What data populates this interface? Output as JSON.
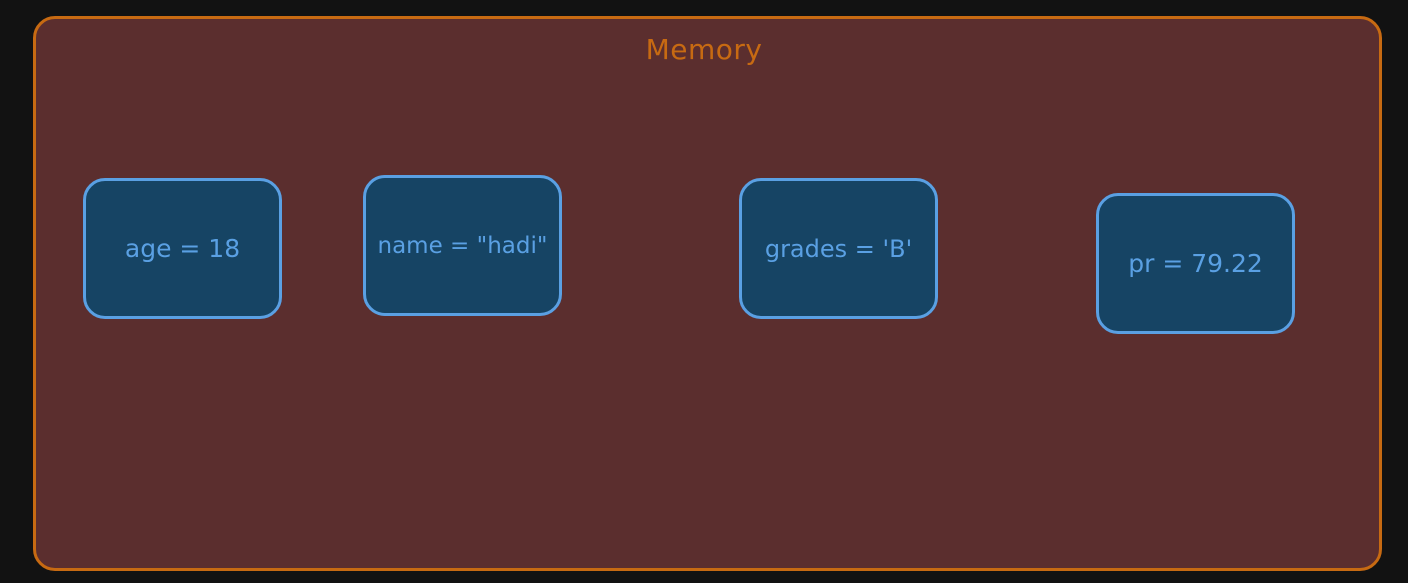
{
  "memory": {
    "title": "Memory",
    "border_color": "#c76a12",
    "fill_color": "#5b2e2e"
  },
  "variables": [
    {
      "label": "age = 18"
    },
    {
      "label": "name = \"hadi\""
    },
    {
      "label": "grades = 'B'"
    },
    {
      "label": "pr = 79.22"
    }
  ],
  "variable_style": {
    "border_color": "#5aa0e3",
    "fill_color": "#164464"
  }
}
